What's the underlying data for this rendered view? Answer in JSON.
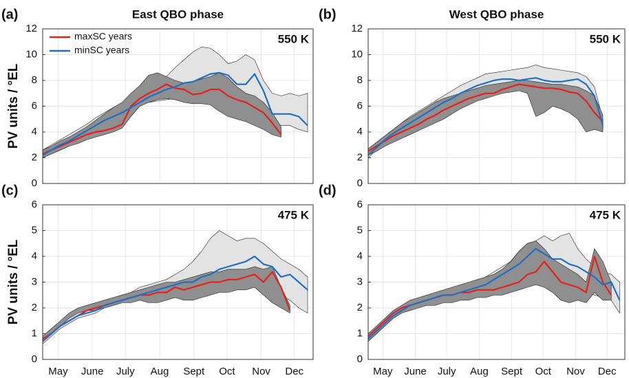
{
  "chart_data": [
    {
      "type": "line",
      "panel_label": "(a)",
      "title": "East QBO phase",
      "level": "550 K",
      "y_label": "PV units / °EL",
      "legend": "upper left",
      "x": [
        121,
        129,
        137,
        145,
        153,
        161,
        169,
        177,
        185,
        193,
        201,
        209,
        217,
        225,
        233,
        241,
        249,
        257,
        265,
        273,
        281,
        289,
        297,
        305,
        313,
        321,
        329,
        337,
        345,
        353,
        361
      ],
      "xlim": [
        121,
        366
      ],
      "ylim": [
        0,
        12
      ],
      "yticks": [
        0,
        2,
        4,
        6,
        8,
        10,
        12
      ],
      "xticks": [
        135,
        166,
        196,
        227,
        258,
        288,
        319,
        349
      ],
      "grid": true,
      "bands": [
        {
          "color": "#e3e3e3",
          "lower": [
            2.0,
            2.3,
            2.6,
            2.9,
            3.2,
            3.6,
            4.0,
            4.3,
            4.6,
            5.0,
            5.5,
            6.0,
            6.3,
            6.4,
            6.5,
            6.6,
            6.6,
            6.7,
            6.9,
            7.0,
            7.2,
            7.2,
            6.8,
            6.5,
            6.3,
            5.3,
            4.5,
            4.5,
            4.5,
            4.2,
            4.0
          ],
          "upper": [
            2.6,
            3.0,
            3.4,
            3.8,
            4.2,
            4.6,
            5.1,
            5.5,
            5.9,
            6.2,
            6.6,
            7.0,
            7.4,
            7.8,
            8.3,
            9.0,
            9.6,
            10.2,
            10.6,
            10.5,
            10.0,
            9.3,
            9.5,
            10.0,
            9.6,
            8.0,
            7.0,
            6.8,
            7.0,
            6.8,
            7.0
          ]
        },
        {
          "color": "#8f8f8f",
          "lower": [
            2.0,
            2.3,
            2.6,
            2.9,
            3.1,
            3.4,
            3.6,
            3.8,
            4.0,
            4.3,
            5.2,
            6.0,
            6.3,
            6.5,
            6.6,
            6.5,
            6.3,
            6.2,
            6.2,
            6.1,
            5.6,
            5.2,
            5.0,
            4.8,
            4.5,
            4.2,
            3.8,
            3.6,
            null,
            null,
            null
          ],
          "upper": [
            2.6,
            2.9,
            3.3,
            3.6,
            4.0,
            4.4,
            4.9,
            5.4,
            5.9,
            6.3,
            7.0,
            7.6,
            8.4,
            8.6,
            8.3,
            8.0,
            7.8,
            7.9,
            8.1,
            8.3,
            8.6,
            8.2,
            7.5,
            7.0,
            6.8,
            6.3,
            5.5,
            4.4,
            null,
            null,
            null
          ]
        }
      ],
      "series": [
        {
          "name": "maxSC years",
          "color": "#e5211d",
          "values": [
            2.3,
            2.6,
            2.9,
            3.2,
            3.5,
            3.8,
            4.0,
            4.1,
            4.3,
            4.6,
            6.0,
            6.6,
            7.0,
            7.3,
            7.7,
            7.4,
            7.3,
            6.9,
            7.0,
            7.3,
            7.3,
            6.8,
            6.5,
            6.3,
            5.9,
            5.5,
            4.7,
            3.8,
            null,
            null,
            null
          ]
        },
        {
          "name": "minSC years",
          "color": "#1f6fc6",
          "values": [
            2.2,
            2.6,
            3.0,
            3.3,
            3.7,
            4.1,
            4.5,
            4.9,
            5.2,
            5.5,
            5.9,
            6.3,
            6.7,
            7.0,
            7.3,
            7.5,
            7.8,
            7.9,
            8.2,
            8.5,
            8.6,
            8.4,
            7.7,
            7.7,
            8.5,
            7.2,
            5.4,
            5.4,
            5.4,
            5.2,
            4.5
          ]
        }
      ]
    },
    {
      "type": "line",
      "panel_label": "(b)",
      "title": "West QBO phase",
      "level": "550 K",
      "x": [
        121,
        129,
        137,
        145,
        153,
        161,
        169,
        177,
        185,
        193,
        201,
        209,
        217,
        225,
        233,
        241,
        249,
        257,
        265,
        273,
        281,
        289,
        297,
        305,
        313,
        321,
        329,
        337,
        345,
        353,
        361
      ],
      "xlim": [
        121,
        366
      ],
      "ylim": [
        0,
        12
      ],
      "yticks": [
        0,
        2,
        4,
        6,
        8,
        10,
        12
      ],
      "xticks": [
        135,
        166,
        196,
        227,
        258,
        288,
        319,
        349
      ],
      "grid": true,
      "bands": [
        {
          "color": "#e3e3e3",
          "lower": [
            2.0,
            2.6,
            3.1,
            3.6,
            4.0,
            4.4,
            4.8,
            5.2,
            5.5,
            5.9,
            6.2,
            6.6,
            6.9,
            7.2,
            7.3,
            7.4,
            7.5,
            7.6,
            7.4,
            7.5,
            7.6,
            7.6,
            7.5,
            7.3,
            7.2,
            7.0,
            6.5,
            5.5,
            4.2,
            null,
            null
          ],
          "upper": [
            2.6,
            3.2,
            3.7,
            4.2,
            4.7,
            5.2,
            5.6,
            6.0,
            6.4,
            6.8,
            7.2,
            7.6,
            7.9,
            8.2,
            8.5,
            8.6,
            8.7,
            8.8,
            8.9,
            9.0,
            9.2,
            9.0,
            8.9,
            8.8,
            8.7,
            8.6,
            8.3,
            7.5,
            5.0,
            null,
            null
          ]
        },
        {
          "color": "#8f8f8f",
          "lower": [
            2.2,
            2.5,
            2.9,
            3.2,
            3.5,
            3.8,
            4.1,
            4.4,
            4.7,
            5.0,
            5.4,
            5.8,
            6.1,
            6.4,
            6.6,
            6.8,
            7.0,
            7.1,
            7.2,
            7.0,
            5.2,
            5.5,
            6.0,
            5.8,
            5.5,
            5.0,
            4.0,
            4.2,
            4.0,
            null,
            null
          ],
          "upper": [
            2.7,
            3.2,
            3.7,
            4.2,
            4.7,
            5.1,
            5.5,
            5.9,
            6.3,
            6.6,
            6.8,
            7.0,
            7.2,
            7.4,
            7.6,
            7.7,
            7.8,
            7.9,
            8.0,
            8.0,
            7.9,
            7.8,
            7.7,
            7.7,
            7.6,
            7.5,
            7.2,
            6.8,
            5.3,
            null,
            null
          ]
        }
      ],
      "series": [
        {
          "name": "maxSC years",
          "color": "#e5211d",
          "values": [
            2.5,
            2.9,
            3.3,
            3.7,
            4.0,
            4.3,
            4.6,
            5.0,
            5.3,
            5.7,
            6.0,
            6.3,
            6.6,
            6.8,
            7.0,
            7.0,
            7.3,
            7.5,
            7.7,
            7.6,
            7.5,
            7.4,
            7.4,
            7.3,
            7.1,
            7.0,
            6.4,
            5.5,
            4.8,
            null,
            null
          ]
        },
        {
          "name": "minSC years",
          "color": "#1f6fc6",
          "values": [
            2.2,
            2.8,
            3.4,
            3.9,
            4.3,
            4.7,
            5.1,
            5.5,
            5.9,
            6.3,
            6.6,
            7.0,
            7.3,
            7.6,
            7.8,
            8.0,
            8.1,
            8.1,
            8.0,
            8.1,
            8.2,
            8.0,
            7.9,
            7.9,
            8.0,
            8.1,
            7.7,
            6.8,
            4.5,
            null,
            null
          ]
        }
      ]
    },
    {
      "type": "line",
      "panel_label": "(c)",
      "level": "475 K",
      "y_label": "PV units / °EL",
      "x": [
        121,
        129,
        137,
        145,
        153,
        161,
        169,
        177,
        185,
        193,
        201,
        209,
        217,
        225,
        233,
        241,
        249,
        257,
        265,
        273,
        281,
        289,
        297,
        305,
        313,
        321,
        329,
        337,
        345,
        353,
        361
      ],
      "xlim": [
        121,
        366
      ],
      "ylim": [
        0,
        6
      ],
      "yticks": [
        0,
        1,
        2,
        3,
        4,
        5,
        6
      ],
      "grid": true,
      "xticks": [
        {
          "value": 135,
          "label": "May"
        },
        {
          "value": 166,
          "label": "June"
        },
        {
          "value": 196,
          "label": "July"
        },
        {
          "value": 227,
          "label": "Aug"
        },
        {
          "value": 258,
          "label": "Sept"
        },
        {
          "value": 288,
          "label": "Oct"
        },
        {
          "value": 319,
          "label": "Nov"
        },
        {
          "value": 349,
          "label": "Dec"
        }
      ],
      "bands": [
        {
          "color": "#e3e3e3",
          "lower": [
            0.6,
            0.9,
            1.2,
            1.4,
            1.6,
            1.7,
            1.8,
            2.0,
            2.1,
            2.2,
            2.3,
            2.4,
            2.5,
            2.5,
            2.6,
            2.7,
            2.8,
            2.8,
            2.9,
            3.0,
            3.1,
            3.2,
            3.3,
            3.3,
            3.2,
            3.0,
            2.8,
            2.5,
            2.3,
            2.0,
            1.8
          ],
          "upper": [
            0.8,
            1.1,
            1.4,
            1.7,
            1.9,
            2.1,
            2.2,
            2.3,
            2.4,
            2.5,
            2.6,
            2.8,
            2.9,
            3.0,
            3.1,
            3.3,
            3.5,
            3.8,
            4.2,
            4.7,
            5.0,
            4.8,
            4.6,
            4.7,
            4.7,
            4.5,
            4.2,
            3.9,
            3.7,
            3.5,
            3.2
          ]
        },
        {
          "color": "#8f8f8f",
          "lower": [
            0.7,
            1.0,
            1.3,
            1.6,
            1.8,
            1.9,
            1.9,
            2.0,
            2.1,
            2.2,
            2.2,
            2.3,
            2.2,
            2.2,
            2.3,
            2.4,
            2.3,
            2.3,
            2.4,
            2.5,
            2.6,
            2.6,
            2.7,
            2.7,
            2.8,
            2.5,
            2.2,
            2.0,
            1.8,
            null,
            null
          ],
          "upper": [
            0.9,
            1.2,
            1.5,
            1.8,
            2.0,
            2.1,
            2.2,
            2.3,
            2.4,
            2.5,
            2.6,
            2.7,
            2.8,
            2.9,
            3.0,
            3.0,
            3.1,
            3.2,
            3.3,
            3.4,
            3.4,
            3.5,
            3.5,
            3.5,
            3.6,
            3.5,
            3.6,
            2.8,
            2.1,
            null,
            null
          ]
        }
      ],
      "series": [
        {
          "name": "maxSC years",
          "color": "#e5211d",
          "values": [
            0.8,
            1.0,
            1.3,
            1.5,
            1.7,
            1.9,
            2.0,
            2.1,
            2.2,
            2.3,
            2.4,
            2.5,
            2.5,
            2.6,
            2.6,
            2.8,
            2.7,
            2.8,
            2.9,
            3.0,
            3.0,
            3.1,
            3.1,
            3.2,
            3.3,
            3.0,
            3.4,
            2.8,
            1.9,
            null,
            null
          ]
        },
        {
          "name": "minSC years",
          "color": "#1f6fc6",
          "values": [
            0.7,
            1.0,
            1.3,
            1.5,
            1.7,
            1.8,
            1.9,
            2.1,
            2.2,
            2.3,
            2.4,
            2.5,
            2.6,
            2.7,
            2.8,
            2.9,
            3.0,
            3.0,
            3.2,
            3.3,
            3.5,
            3.6,
            3.7,
            3.8,
            4.0,
            3.7,
            3.6,
            3.2,
            3.3,
            3.0,
            2.7
          ]
        }
      ]
    },
    {
      "type": "line",
      "panel_label": "(d)",
      "level": "475 K",
      "x": [
        121,
        129,
        137,
        145,
        153,
        161,
        169,
        177,
        185,
        193,
        201,
        209,
        217,
        225,
        233,
        241,
        249,
        257,
        265,
        273,
        281,
        289,
        297,
        305,
        313,
        321,
        329,
        337,
        345,
        353,
        361
      ],
      "xlim": [
        121,
        366
      ],
      "ylim": [
        0,
        6
      ],
      "yticks": [
        0,
        1,
        2,
        3,
        4,
        5,
        6
      ],
      "grid": true,
      "xticks": [
        {
          "value": 135,
          "label": "May"
        },
        {
          "value": 166,
          "label": "June"
        },
        {
          "value": 196,
          "label": "July"
        },
        {
          "value": 227,
          "label": "Aug"
        },
        {
          "value": 258,
          "label": "Sept"
        },
        {
          "value": 288,
          "label": "Oct"
        },
        {
          "value": 319,
          "label": "Nov"
        },
        {
          "value": 349,
          "label": "Dec"
        }
      ],
      "bands": [
        {
          "color": "#e3e3e3",
          "lower": [
            0.7,
            1.0,
            1.3,
            1.6,
            1.8,
            2.0,
            2.1,
            2.2,
            2.3,
            2.4,
            2.4,
            2.5,
            2.6,
            2.7,
            2.8,
            3.0,
            3.1,
            3.2,
            3.4,
            3.6,
            3.8,
            3.7,
            3.5,
            3.4,
            3.2,
            3.0,
            2.6,
            2.5,
            2.4,
            2.3,
            1.8
          ],
          "upper": [
            0.9,
            1.2,
            1.5,
            1.8,
            2.0,
            2.2,
            2.3,
            2.4,
            2.5,
            2.6,
            2.7,
            2.8,
            2.9,
            3.0,
            3.2,
            3.4,
            3.6,
            3.8,
            4.2,
            4.5,
            4.6,
            4.8,
            4.6,
            4.8,
            4.9,
            4.3,
            3.9,
            3.6,
            3.4,
            3.3,
            3.0
          ]
        },
        {
          "color": "#8f8f8f",
          "lower": [
            0.7,
            1.0,
            1.3,
            1.6,
            1.8,
            1.9,
            2.0,
            2.1,
            2.1,
            2.2,
            2.2,
            2.3,
            2.3,
            2.4,
            2.4,
            2.5,
            2.5,
            2.6,
            2.7,
            2.8,
            2.9,
            2.8,
            2.6,
            2.3,
            2.2,
            2.3,
            2.2,
            2.6,
            2.3,
            2.3,
            null
          ],
          "upper": [
            1.0,
            1.3,
            1.6,
            1.9,
            2.1,
            2.3,
            2.4,
            2.5,
            2.6,
            2.7,
            2.8,
            2.9,
            3.0,
            3.1,
            3.2,
            3.3,
            3.5,
            3.8,
            4.2,
            4.5,
            4.6,
            4.3,
            3.9,
            3.7,
            3.5,
            3.3,
            3.0,
            4.3,
            3.8,
            3.0,
            null
          ]
        }
      ],
      "series": [
        {
          "name": "maxSC years",
          "color": "#e5211d",
          "values": [
            0.9,
            1.2,
            1.5,
            1.8,
            2.0,
            2.1,
            2.2,
            2.3,
            2.4,
            2.5,
            2.5,
            2.6,
            2.6,
            2.7,
            2.7,
            2.7,
            2.8,
            2.9,
            3.0,
            3.3,
            3.4,
            3.8,
            3.4,
            3.0,
            2.9,
            2.8,
            2.6,
            4.0,
            3.0,
            2.5,
            null
          ]
        },
        {
          "name": "minSC years",
          "color": "#1f6fc6",
          "values": [
            0.8,
            1.1,
            1.4,
            1.7,
            1.9,
            2.1,
            2.2,
            2.3,
            2.4,
            2.5,
            2.5,
            2.6,
            2.7,
            2.8,
            2.9,
            3.1,
            3.3,
            3.5,
            3.7,
            4.0,
            4.3,
            4.1,
            3.9,
            3.9,
            3.7,
            3.6,
            3.4,
            3.2,
            2.9,
            3.0,
            2.3
          ]
        }
      ]
    }
  ]
}
